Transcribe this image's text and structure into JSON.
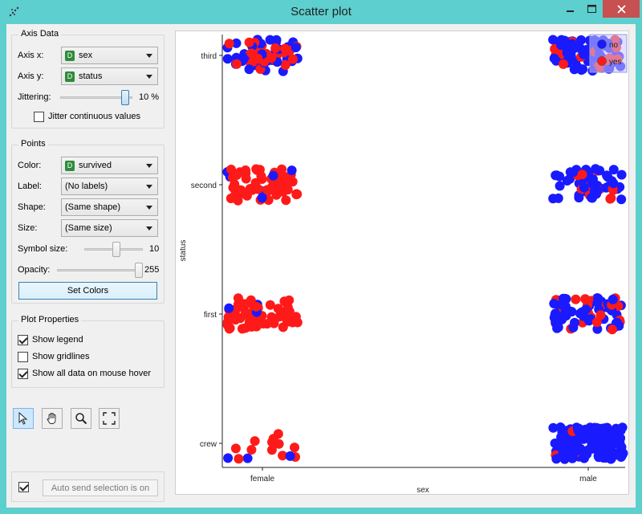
{
  "window": {
    "title": "Scatter plot",
    "icon": "scatter-plot-icon",
    "controls": [
      "minimize-icon",
      "maximize-icon",
      "close-icon"
    ]
  },
  "axis_data": {
    "title": "Axis Data",
    "axis_x_label": "Axis x:",
    "axis_x_value": "sex",
    "axis_y_label": "Axis y:",
    "axis_y_value": "status",
    "var_badge": "D",
    "jittering_label": "Jittering:",
    "jittering_value": "10 %",
    "jittering_level": 0.95,
    "jitter_continuous_label": "Jitter continuous values",
    "jitter_continuous_checked": false
  },
  "points": {
    "title": "Points",
    "color_label": "Color:",
    "color_value": "survived",
    "label_label": "Label:",
    "label_value": "(No labels)",
    "shape_label": "Shape:",
    "shape_value": "(Same shape)",
    "size_label": "Size:",
    "size_value": "(Same size)",
    "symbol_size_label": "Symbol size:",
    "symbol_size_value": "10",
    "symbol_size_level": 0.55,
    "opacity_label": "Opacity:",
    "opacity_value": "255",
    "opacity_level": 1.0,
    "set_colors_label": "Set Colors"
  },
  "plot_properties": {
    "title": "Plot Properties",
    "show_legend_label": "Show legend",
    "show_legend_checked": true,
    "show_gridlines_label": "Show gridlines",
    "show_gridlines_checked": false,
    "show_all_data_label": "Show all data on mouse hover",
    "show_all_data_checked": true
  },
  "toolbar": {
    "tools": [
      "select-arrow-icon",
      "pan-hand-icon",
      "zoom-magnifier-icon",
      "fit-expand-icon"
    ],
    "active": "select-arrow-icon"
  },
  "auto_send": {
    "checked": true,
    "label": "Auto send selection is on"
  },
  "colors": {
    "no": "#1a1aff",
    "yes": "#ff1a1a",
    "accent": "#3c7fb1",
    "title_bar": "#5ecfcf",
    "close_button": "#c75050"
  },
  "chart_data": {
    "type": "scatter",
    "title": "",
    "xlabel": "sex",
    "ylabel": "status",
    "x_categories": [
      "female",
      "male"
    ],
    "y_categories": [
      "crew",
      "first",
      "second",
      "third"
    ],
    "jitter": 0.1,
    "grid": false,
    "legend": {
      "placement": "top-right",
      "entries": [
        {
          "name": "no",
          "color": "#1a1aff"
        },
        {
          "name": "yes",
          "color": "#ff1a1a"
        }
      ]
    },
    "series": [
      {
        "name": "no",
        "color": "#1a1aff",
        "groups": [
          {
            "x": "female",
            "y": "third",
            "count": 40
          },
          {
            "x": "female",
            "y": "second",
            "count": 6
          },
          {
            "x": "female",
            "y": "first",
            "count": 3
          },
          {
            "x": "female",
            "y": "crew",
            "count": 3
          },
          {
            "x": "male",
            "y": "third",
            "count": 70
          },
          {
            "x": "male",
            "y": "second",
            "count": 45
          },
          {
            "x": "male",
            "y": "first",
            "count": 55
          },
          {
            "x": "male",
            "y": "crew",
            "count": 150
          }
        ]
      },
      {
        "name": "yes",
        "color": "#ff1a1a",
        "groups": [
          {
            "x": "female",
            "y": "third",
            "count": 30
          },
          {
            "x": "female",
            "y": "second",
            "count": 55
          },
          {
            "x": "female",
            "y": "first",
            "count": 60
          },
          {
            "x": "female",
            "y": "crew",
            "count": 12
          },
          {
            "x": "male",
            "y": "third",
            "count": 15
          },
          {
            "x": "male",
            "y": "second",
            "count": 12
          },
          {
            "x": "male",
            "y": "first",
            "count": 25
          },
          {
            "x": "male",
            "y": "crew",
            "count": 5
          }
        ]
      }
    ]
  }
}
